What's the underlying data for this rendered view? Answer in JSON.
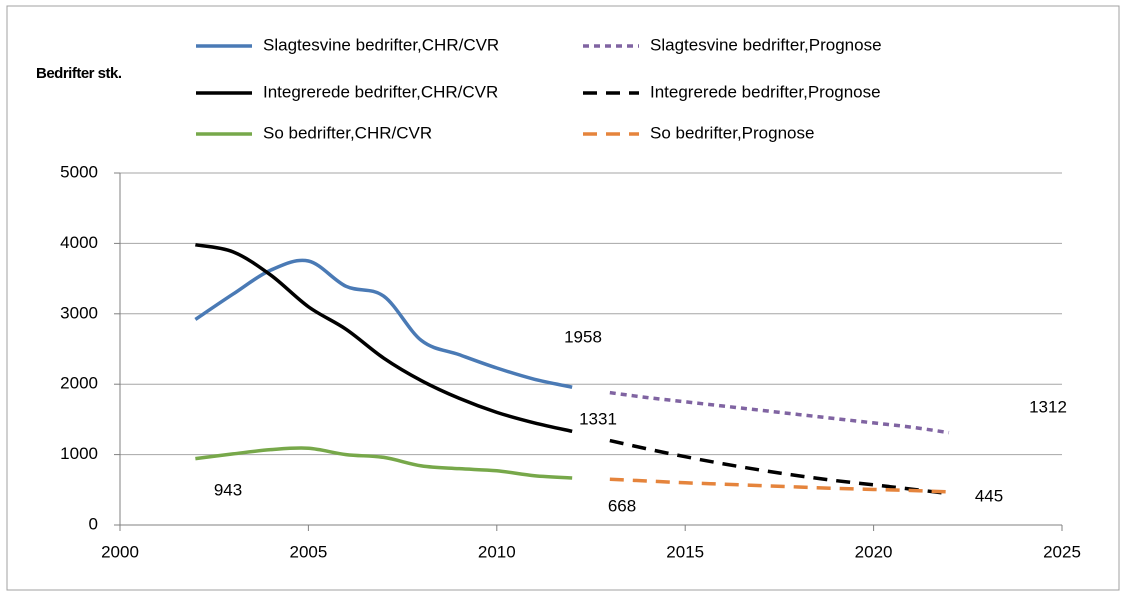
{
  "chart_data": {
    "type": "line",
    "y_label": "Bedrifter stk.",
    "xlim": [
      2000,
      2025
    ],
    "xticks": [
      2000,
      2005,
      2010,
      2015,
      2020,
      2025
    ],
    "ylim": [
      0,
      5000
    ],
    "yticks": [
      0,
      1000,
      2000,
      3000,
      4000,
      5000
    ],
    "grid": true,
    "series": [
      {
        "name": "Slagtesvine bedrifter,CHR/CVR",
        "color": "#4a7ab5",
        "dash": false,
        "x": [
          2002,
          2003,
          2004,
          2005,
          2006,
          2007,
          2008,
          2009,
          2010,
          2011,
          2012
        ],
        "values": [
          2920,
          3280,
          3620,
          3750,
          3390,
          3250,
          2620,
          2420,
          2230,
          2070,
          1958
        ]
      },
      {
        "name": "Slagtesvine bedrifter,Prognose",
        "color": "#8064a2",
        "dash": true,
        "x": [
          2013,
          2014,
          2015,
          2016,
          2017,
          2018,
          2019,
          2020,
          2021,
          2022
        ],
        "values": [
          1880,
          1810,
          1750,
          1690,
          1630,
          1570,
          1510,
          1450,
          1390,
          1312
        ]
      },
      {
        "name": "Integrerede bedrifter,CHR/CVR",
        "color": "#000000",
        "dash": false,
        "x": [
          2002,
          2003,
          2004,
          2005,
          2006,
          2007,
          2008,
          2009,
          2010,
          2011,
          2012
        ],
        "values": [
          3980,
          3880,
          3550,
          3100,
          2780,
          2370,
          2050,
          1800,
          1600,
          1450,
          1331
        ]
      },
      {
        "name": "Integrerede bedrifter,Prognose",
        "color": "#000000",
        "dash": true,
        "x": [
          2013,
          2014,
          2015,
          2016,
          2017,
          2018,
          2019,
          2020,
          2021,
          2022
        ],
        "values": [
          1200,
          1080,
          970,
          870,
          780,
          700,
          630,
          570,
          510,
          445
        ]
      },
      {
        "name": "So bedrifter,CHR/CVR",
        "color": "#77a84a",
        "dash": false,
        "x": [
          2002,
          2003,
          2004,
          2005,
          2006,
          2007,
          2008,
          2009,
          2010,
          2011,
          2012
        ],
        "values": [
          943,
          1010,
          1070,
          1090,
          1000,
          960,
          840,
          800,
          770,
          700,
          668
        ]
      },
      {
        "name": "So bedrifter,Prognose",
        "color": "#e5843c",
        "dash": true,
        "x": [
          2013,
          2014,
          2015,
          2016,
          2017,
          2018,
          2019,
          2020,
          2021,
          2022
        ],
        "values": [
          650,
          625,
          600,
          580,
          560,
          540,
          520,
          505,
          490,
          470
        ]
      }
    ],
    "data_labels": [
      {
        "series": 0,
        "index": 10
      },
      {
        "series": 2,
        "index": 10
      },
      {
        "series": 4,
        "index": 0
      },
      {
        "series": 4,
        "index": 10
      },
      {
        "series": 1,
        "index": 9
      },
      {
        "series": 3,
        "index": 9
      }
    ]
  }
}
